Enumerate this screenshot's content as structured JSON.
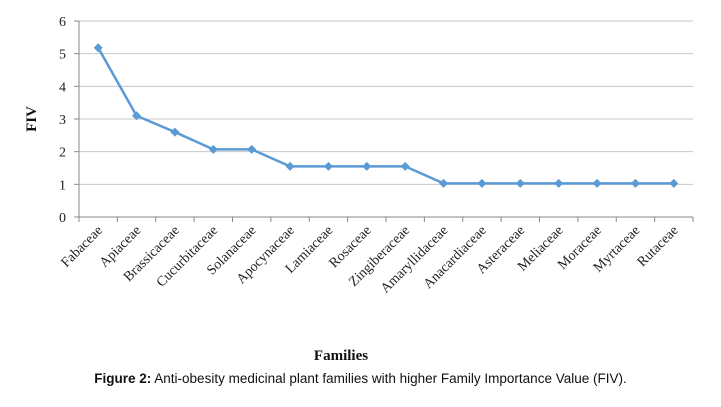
{
  "chart_data": {
    "type": "line",
    "categories": [
      "Fabaceae",
      "Apiaceae",
      "Brassicaceae",
      "Cucurbitaceae",
      "Solanaceae",
      "Apocynaceae",
      "Lamiaceae",
      "Rosaceae",
      "Zingiberaceae",
      "Amaryllidaceae",
      "Anacardiaceae",
      "Asteraceae",
      "Meliaceae",
      "Moraceae",
      "Myrtaceae",
      "Rutaceae"
    ],
    "series": [
      {
        "values": [
          5.18,
          3.1,
          2.6,
          2.07,
          2.07,
          1.55,
          1.55,
          1.55,
          1.55,
          1.03,
          1.03,
          1.03,
          1.03,
          1.03,
          1.03,
          1.03
        ]
      }
    ],
    "xlabel": "Families",
    "ylabel": "FIV",
    "ylim": [
      0,
      6
    ],
    "yticks": [
      "0",
      "1",
      "2",
      "3",
      "4",
      "5",
      "6"
    ],
    "grid": true,
    "line_color": "#5b9bd5",
    "grid_color": "#c8c8c8"
  },
  "caption": {
    "label": "Figure 2:",
    "text": " Anti-obesity medicinal plant families with higher Family Importance Value (FIV)."
  }
}
